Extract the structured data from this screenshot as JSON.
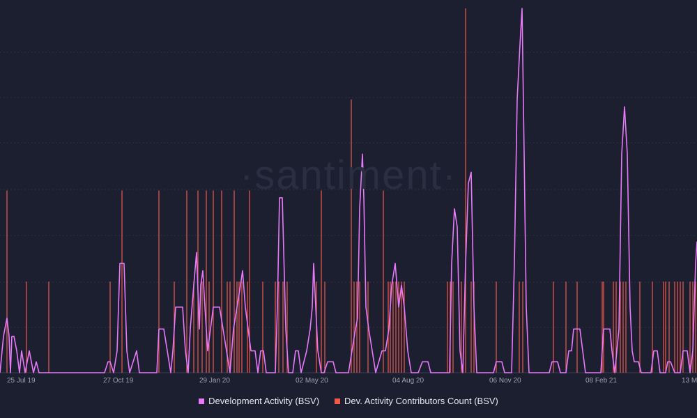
{
  "watermark": "·santiment·",
  "chart_data": {
    "type": "line",
    "title": "",
    "xlabel": "",
    "ylabel": "",
    "x_ticks": [
      "25 Jul 19",
      "27 Oct 19",
      "29 Jan 20",
      "02 May 20",
      "04 Aug 20",
      "06 Nov 20",
      "08 Feb 21",
      "13 M"
    ],
    "grid": true,
    "legend_position": "bottom",
    "ylim": [
      0,
      100
    ],
    "series": [
      {
        "name": "Development Activity (BSV)",
        "color": "#e879f9",
        "style": "line",
        "points": [
          [
            0,
            0
          ],
          [
            5,
            10
          ],
          [
            10,
            15
          ],
          [
            13,
            10
          ],
          [
            15,
            0
          ],
          [
            17,
            10
          ],
          [
            20,
            10
          ],
          [
            24,
            6
          ],
          [
            28,
            0
          ],
          [
            31,
            6
          ],
          [
            36,
            0
          ],
          [
            42,
            6
          ],
          [
            48,
            0
          ],
          [
            52,
            3
          ],
          [
            56,
            0
          ],
          [
            150,
            0
          ],
          [
            155,
            3
          ],
          [
            158,
            3
          ],
          [
            163,
            0
          ],
          [
            168,
            6
          ],
          [
            172,
            30
          ],
          [
            178,
            30
          ],
          [
            182,
            6
          ],
          [
            186,
            0
          ],
          [
            196,
            6
          ],
          [
            200,
            0
          ],
          [
            225,
            0
          ],
          [
            228,
            12
          ],
          [
            235,
            12
          ],
          [
            240,
            6
          ],
          [
            245,
            0
          ],
          [
            248,
            6
          ],
          [
            252,
            18
          ],
          [
            262,
            18
          ],
          [
            266,
            6
          ],
          [
            270,
            0
          ],
          [
            273,
            12
          ],
          [
            278,
            24
          ],
          [
            282,
            33
          ],
          [
            286,
            12
          ],
          [
            288,
            24
          ],
          [
            291,
            28
          ],
          [
            294,
            18
          ],
          [
            298,
            6
          ],
          [
            302,
            12
          ],
          [
            306,
            18
          ],
          [
            315,
            18
          ],
          [
            320,
            12
          ],
          [
            325,
            6
          ],
          [
            330,
            0
          ],
          [
            335,
            12
          ],
          [
            340,
            18
          ],
          [
            345,
            24
          ],
          [
            348,
            28
          ],
          [
            352,
            18
          ],
          [
            356,
            12
          ],
          [
            360,
            6
          ],
          [
            366,
            6
          ],
          [
            370,
            0
          ],
          [
            374,
            6
          ],
          [
            378,
            6
          ],
          [
            382,
            0
          ],
          [
            395,
            0
          ],
          [
            398,
            18
          ],
          [
            401,
            48
          ],
          [
            405,
            48
          ],
          [
            410,
            12
          ],
          [
            414,
            0
          ],
          [
            420,
            0
          ],
          [
            424,
            6
          ],
          [
            428,
            6
          ],
          [
            432,
            0
          ],
          [
            440,
            6
          ],
          [
            445,
            12
          ],
          [
            448,
            18
          ],
          [
            450,
            30
          ],
          [
            453,
            18
          ],
          [
            456,
            6
          ],
          [
            461,
            0
          ],
          [
            465,
            0
          ],
          [
            470,
            3
          ],
          [
            478,
            3
          ],
          [
            482,
            0
          ],
          [
            500,
            0
          ],
          [
            505,
            6
          ],
          [
            510,
            12
          ],
          [
            513,
            15
          ],
          [
            516,
            45
          ],
          [
            520,
            60
          ],
          [
            522,
            48
          ],
          [
            525,
            18
          ],
          [
            529,
            12
          ],
          [
            534,
            6
          ],
          [
            539,
            0
          ],
          [
            548,
            6
          ],
          [
            553,
            6
          ],
          [
            558,
            12
          ],
          [
            562,
            24
          ],
          [
            567,
            30
          ],
          [
            572,
            18
          ],
          [
            576,
            24
          ],
          [
            580,
            18
          ],
          [
            585,
            6
          ],
          [
            590,
            0
          ],
          [
            600,
            0
          ],
          [
            606,
            3
          ],
          [
            614,
            3
          ],
          [
            618,
            0
          ],
          [
            645,
            0
          ],
          [
            648,
            30
          ],
          [
            652,
            45
          ],
          [
            656,
            40
          ],
          [
            660,
            6
          ],
          [
            664,
            0
          ],
          [
            668,
            30
          ],
          [
            672,
            52
          ],
          [
            676,
            55
          ],
          [
            680,
            18
          ],
          [
            684,
            0
          ],
          [
            708,
            0
          ],
          [
            712,
            3
          ],
          [
            720,
            3
          ],
          [
            724,
            0
          ],
          [
            734,
            0
          ],
          [
            738,
            30
          ],
          [
            742,
            75
          ],
          [
            746,
            90
          ],
          [
            749,
            100
          ],
          [
            752,
            60
          ],
          [
            755,
            18
          ],
          [
            759,
            0
          ],
          [
            788,
            0
          ],
          [
            792,
            3
          ],
          [
            800,
            3
          ],
          [
            804,
            0
          ],
          [
            812,
            0
          ],
          [
            816,
            6
          ],
          [
            820,
            6
          ],
          [
            823,
            12
          ],
          [
            832,
            12
          ],
          [
            836,
            6
          ],
          [
            840,
            0
          ],
          [
            862,
            0
          ],
          [
            866,
            12
          ],
          [
            875,
            12
          ],
          [
            878,
            6
          ],
          [
            882,
            0
          ],
          [
            888,
            12
          ],
          [
            892,
            60
          ],
          [
            896,
            73
          ],
          [
            900,
            60
          ],
          [
            904,
            18
          ],
          [
            907,
            6
          ],
          [
            910,
            3
          ],
          [
            916,
            3
          ],
          [
            920,
            0
          ],
          [
            934,
            0
          ],
          [
            938,
            6
          ],
          [
            943,
            6
          ],
          [
            947,
            0
          ],
          [
            955,
            0
          ],
          [
            958,
            3
          ],
          [
            962,
            3
          ],
          [
            968,
            0
          ],
          [
            976,
            0
          ],
          [
            980,
            6
          ],
          [
            986,
            6
          ],
          [
            990,
            0
          ],
          [
            994,
            6
          ],
          [
            998,
            30
          ],
          [
            1000,
            36
          ]
        ]
      },
      {
        "name": "Dev. Activity Contributors Count (BSV)",
        "color": "#f05a4b",
        "style": "spikes",
        "points": [
          [
            10,
            50
          ],
          [
            38,
            25
          ],
          [
            70,
            25
          ],
          [
            158,
            25
          ],
          [
            175,
            50
          ],
          [
            228,
            50
          ],
          [
            250,
            25
          ],
          [
            268,
            50
          ],
          [
            278,
            25
          ],
          [
            284,
            50
          ],
          [
            290,
            25
          ],
          [
            296,
            50
          ],
          [
            300,
            25
          ],
          [
            306,
            50
          ],
          [
            318,
            50
          ],
          [
            326,
            25
          ],
          [
            330,
            25
          ],
          [
            336,
            50
          ],
          [
            340,
            25
          ],
          [
            343,
            25
          ],
          [
            347,
            25
          ],
          [
            355,
            25
          ],
          [
            358,
            50
          ],
          [
            377,
            25
          ],
          [
            395,
            25
          ],
          [
            400,
            25
          ],
          [
            406,
            25
          ],
          [
            412,
            25
          ],
          [
            454,
            25
          ],
          [
            461,
            50
          ],
          [
            466,
            25
          ],
          [
            504,
            75
          ],
          [
            508,
            25
          ],
          [
            512,
            25
          ],
          [
            516,
            25
          ],
          [
            528,
            25
          ],
          [
            550,
            50
          ],
          [
            557,
            25
          ],
          [
            560,
            25
          ],
          [
            564,
            25
          ],
          [
            568,
            25
          ],
          [
            572,
            25
          ],
          [
            576,
            25
          ],
          [
            580,
            25
          ],
          [
            642,
            25
          ],
          [
            646,
            25
          ],
          [
            650,
            25
          ],
          [
            662,
            25
          ],
          [
            668,
            100
          ],
          [
            676,
            25
          ],
          [
            680,
            25
          ],
          [
            712,
            25
          ],
          [
            745,
            25
          ],
          [
            750,
            25
          ],
          [
            794,
            25
          ],
          [
            812,
            25
          ],
          [
            828,
            25
          ],
          [
            864,
            25
          ],
          [
            866,
            25
          ],
          [
            880,
            25
          ],
          [
            884,
            25
          ],
          [
            890,
            25
          ],
          [
            894,
            25
          ],
          [
            898,
            25
          ],
          [
            918,
            25
          ],
          [
            936,
            25
          ],
          [
            952,
            25
          ],
          [
            955,
            25
          ],
          [
            960,
            25
          ],
          [
            968,
            25
          ],
          [
            972,
            25
          ],
          [
            976,
            25
          ],
          [
            980,
            25
          ],
          [
            990,
            25
          ],
          [
            994,
            25
          ],
          [
            998,
            25
          ]
        ]
      }
    ]
  }
}
